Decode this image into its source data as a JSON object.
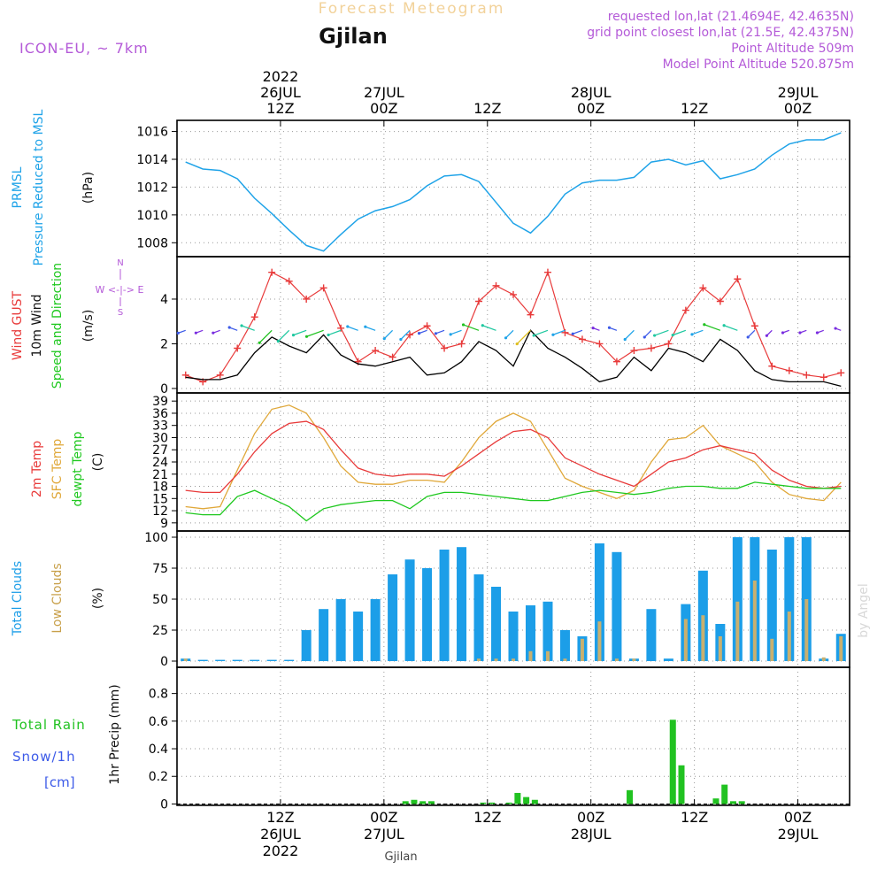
{
  "header": {
    "title": "Forecast Meteogram",
    "location": "Gjilan",
    "model": "ICON-EU, ~ 7km",
    "requested": "requested lon,lat (21.4694E, 42.4635N)",
    "grid_point": "grid point closest lon,lat (21.5E, 42.4375N)",
    "point_altitude": "Point Altitude 509m",
    "model_altitude": "Model Point Altitude 520.875m",
    "watermark": "by Angel",
    "footer_location": "Gjilan"
  },
  "time_axis": {
    "year": "2022",
    "ticks": [
      {
        "hour": 12,
        "line1": "12Z",
        "line2": "26JUL",
        "line3": "2022"
      },
      {
        "hour": 24,
        "line1": "00Z",
        "line2": "27JUL",
        "line3": ""
      },
      {
        "hour": 36,
        "line1": "12Z",
        "line2": "",
        "line3": ""
      },
      {
        "hour": 48,
        "line1": "00Z",
        "line2": "28JUL",
        "line3": ""
      },
      {
        "hour": 60,
        "line1": "12Z",
        "line2": "",
        "line3": ""
      },
      {
        "hour": 72,
        "line1": "00Z",
        "line2": "29JUL",
        "line3": ""
      }
    ]
  },
  "panels": {
    "pressure": {
      "label1": "PRMSL",
      "label2": "Pressure Reduced to MSL",
      "unit": "(hPa)"
    },
    "wind": {
      "label1": "Wind GUST",
      "label2": "10m Wind",
      "label3": "Speed and Direction",
      "unit": "(m/s)",
      "compass_n": "N",
      "compass_s": "S",
      "compass_we": "W <-|-> E"
    },
    "temp": {
      "label1": "2m Temp",
      "label2": "SFC Temp",
      "label3": "dewpt Temp",
      "unit": "(C)"
    },
    "clouds": {
      "label1": "Total Clouds",
      "label2": "Low Clouds",
      "unit": "(%)"
    },
    "precip": {
      "label1": "Total Rain",
      "label2": "Snow/1h",
      "label3": "[cm]",
      "unit": "1hr Precip (mm)"
    }
  },
  "colors": {
    "pressure": "#1fa3e8",
    "gust": "#e83a3a",
    "wind": "#000000",
    "t2m": "#e83a3a",
    "sfc": "#e0a83a",
    "dewpt": "#1fc81f",
    "total_clouds": "#1c9ee8",
    "low_clouds": "#c8b070",
    "rain": "#21c221",
    "header_title": "#f2d29a",
    "purple": "#b45ad8",
    "blue_text": "#3c5ae8"
  },
  "chart_data": [
    {
      "type": "line",
      "name": "pressure",
      "x": [
        1,
        3,
        5,
        7,
        9,
        11,
        13,
        15,
        17,
        19,
        21,
        23,
        25,
        27,
        29,
        31,
        33,
        35,
        37,
        39,
        41,
        43,
        45,
        47,
        49,
        51,
        53,
        55,
        57,
        59,
        61,
        63,
        65,
        67,
        69,
        71,
        73,
        75,
        77
      ],
      "y": [
        1013.8,
        1013.3,
        1013.2,
        1012.6,
        1011.2,
        1010.1,
        1008.9,
        1007.8,
        1007.4,
        1008.6,
        1009.7,
        1010.3,
        1010.6,
        1011.1,
        1012.1,
        1012.8,
        1012.9,
        1012.4,
        1010.9,
        1009.4,
        1008.7,
        1009.9,
        1011.5,
        1012.3,
        1012.5,
        1012.5,
        1012.7,
        1013.8,
        1014.0,
        1013.6,
        1013.9,
        1012.6,
        1012.9,
        1013.3,
        1014.3,
        1015.1,
        1015.4,
        1015.4,
        1015.9
      ],
      "ylim": [
        1007,
        1016.8
      ],
      "yticks": [
        1008,
        1010,
        1012,
        1014,
        1016
      ]
    },
    {
      "type": "line",
      "name": "wind",
      "x": [
        1,
        3,
        5,
        7,
        9,
        11,
        13,
        15,
        17,
        19,
        21,
        23,
        25,
        27,
        29,
        31,
        33,
        35,
        37,
        39,
        41,
        43,
        45,
        47,
        49,
        51,
        53,
        55,
        57,
        59,
        61,
        63,
        65,
        67,
        69,
        71,
        73,
        75,
        77
      ],
      "gust": [
        0.6,
        0.3,
        0.6,
        1.8,
        3.2,
        5.2,
        4.8,
        4.0,
        4.5,
        2.7,
        1.2,
        1.7,
        1.4,
        2.4,
        2.8,
        1.8,
        2.0,
        3.9,
        4.6,
        4.2,
        3.3,
        5.2,
        2.5,
        2.2,
        2.0,
        1.2,
        1.7,
        1.8,
        2.0,
        3.5,
        4.5,
        3.9,
        4.9,
        2.8,
        1.0,
        0.8,
        0.6,
        0.5,
        0.7
      ],
      "wind10m": [
        0.5,
        0.4,
        0.4,
        0.6,
        1.6,
        2.3,
        1.9,
        1.6,
        2.4,
        1.5,
        1.1,
        1.0,
        1.2,
        1.4,
        0.6,
        0.7,
        1.2,
        2.1,
        1.7,
        1.0,
        2.6,
        1.8,
        1.4,
        0.9,
        0.3,
        0.5,
        1.4,
        0.8,
        1.8,
        1.6,
        1.2,
        2.2,
        1.7,
        0.8,
        0.4,
        0.3,
        0.3,
        0.3,
        0.1
      ],
      "ylim": [
        -0.2,
        5.9
      ],
      "yticks": [
        0,
        2,
        4
      ]
    },
    {
      "type": "line",
      "name": "temperature",
      "x": [
        1,
        3,
        5,
        7,
        9,
        11,
        13,
        15,
        17,
        19,
        21,
        23,
        25,
        27,
        29,
        31,
        33,
        35,
        37,
        39,
        41,
        43,
        45,
        47,
        49,
        51,
        53,
        55,
        57,
        59,
        61,
        63,
        65,
        67,
        69,
        71,
        73,
        75,
        77
      ],
      "t2m": [
        17,
        16.5,
        16.5,
        21,
        26.5,
        31,
        33.5,
        34,
        32,
        27,
        22.5,
        21,
        20.5,
        21,
        21,
        20.5,
        23,
        26,
        29,
        31.5,
        32,
        30,
        25,
        23,
        21,
        19.5,
        18,
        21,
        24,
        25,
        27,
        28,
        27,
        26,
        22,
        19.5,
        18,
        17.5,
        18
      ],
      "sfc": [
        13,
        12.5,
        13,
        22,
        31,
        37,
        38,
        36,
        30,
        23,
        19,
        18.5,
        18.5,
        19.5,
        19.5,
        19,
        24,
        30,
        34,
        36,
        34,
        27,
        20,
        18,
        16.5,
        15,
        17,
        24,
        29.5,
        30,
        33,
        28,
        26,
        24,
        19,
        16,
        15,
        14.5,
        19
      ],
      "dewpt": [
        11.5,
        11,
        11,
        15.5,
        17,
        15,
        13,
        9.5,
        12.5,
        13.5,
        14,
        14.5,
        14.5,
        12.5,
        15.5,
        16.5,
        16.5,
        16,
        15.5,
        15,
        14.5,
        14.5,
        15.5,
        16.5,
        17,
        16.5,
        16,
        16.5,
        17.5,
        18,
        18,
        17.5,
        17.5,
        19,
        18.5,
        18,
        17.5,
        17.5,
        17.5
      ],
      "ylim": [
        7,
        41
      ],
      "yticks": [
        9,
        12,
        15,
        18,
        21,
        24,
        27,
        30,
        33,
        36,
        39
      ]
    },
    {
      "type": "bar",
      "name": "clouds",
      "x": [
        1,
        3,
        5,
        7,
        9,
        11,
        13,
        15,
        17,
        19,
        21,
        23,
        25,
        27,
        29,
        31,
        33,
        35,
        37,
        39,
        41,
        43,
        45,
        47,
        49,
        51,
        53,
        55,
        57,
        59,
        61,
        63,
        65,
        67,
        69,
        71,
        73,
        75,
        77
      ],
      "total": [
        2,
        1,
        1,
        1,
        1,
        1,
        1,
        25,
        42,
        50,
        40,
        50,
        70,
        82,
        75,
        90,
        92,
        70,
        60,
        40,
        45,
        48,
        25,
        20,
        95,
        88,
        2,
        42,
        2,
        46,
        73,
        30,
        100,
        100,
        90,
        100,
        100,
        2,
        22
      ],
      "low": [
        2,
        0,
        0,
        0,
        0,
        0,
        0,
        0,
        0,
        0,
        0,
        0,
        0,
        0,
        0,
        0,
        0,
        2,
        2,
        2,
        8,
        8,
        2,
        18,
        32,
        2,
        2,
        0,
        0,
        34,
        37,
        20,
        48,
        65,
        18,
        40,
        50,
        3,
        20
      ],
      "ylim": [
        -5,
        105
      ],
      "yticks": [
        0,
        25,
        50,
        75,
        100
      ]
    },
    {
      "type": "bar",
      "name": "precip",
      "x": [
        26.5,
        27.5,
        28.5,
        29.5,
        35.5,
        36.5,
        38.5,
        39.5,
        40.5,
        41.5,
        52.5,
        57.5,
        58.5,
        62.5,
        63.5,
        64.5,
        65.5
      ],
      "values": [
        0.02,
        0.03,
        0.02,
        0.02,
        0.01,
        0.01,
        0.01,
        0.08,
        0.05,
        0.03,
        0.1,
        0.61,
        0.28,
        0.04,
        0.14,
        0.02,
        0.02
      ],
      "ylim": [
        -0.01,
        0.99
      ],
      "yticks": [
        0,
        0.2,
        0.4,
        0.6,
        0.8
      ]
    }
  ]
}
